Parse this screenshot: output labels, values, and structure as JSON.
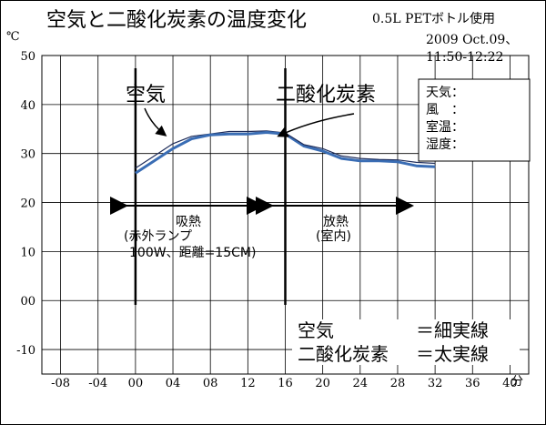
{
  "chart_data": {
    "type": "line",
    "title": "空気と二酸化炭素の温度変化",
    "note_container": "0.5L PETボトル使用",
    "note_date": "2009 Oct.09、",
    "note_time": "11:50-12:22",
    "y_unit_label": "℃",
    "x_unit_label": "分",
    "xlim": [
      -10,
      42
    ],
    "ylim": [
      -15,
      50
    ],
    "x_ticks": [
      -8,
      -4,
      0,
      4,
      8,
      12,
      16,
      20,
      24,
      28,
      32,
      36,
      40
    ],
    "x_tick_labels": [
      "-08",
      "-04",
      "00",
      "04",
      "08",
      "12",
      "16",
      "20",
      "24",
      "28",
      "32",
      "36",
      "40"
    ],
    "y_ticks": [
      -10,
      0,
      10,
      20,
      30,
      40,
      50
    ],
    "y_tick_labels": [
      "-10",
      "00",
      "10",
      "20",
      "30",
      "40",
      "50"
    ],
    "grid": true,
    "series": [
      {
        "name": "空気",
        "style": "細実線",
        "color": "#1f2d5a",
        "x": [
          0,
          2,
          4,
          6,
          8,
          10,
          12,
          14,
          16
        ],
        "values": [
          27,
          29.5,
          32,
          33.5,
          34,
          34.5,
          34.5,
          34.6,
          34.2
        ]
      },
      {
        "name": "二酸化炭素",
        "style": "太実線",
        "color": "#3a6db4",
        "x": [
          0,
          2,
          4,
          6,
          8,
          10,
          12,
          14,
          16,
          18,
          20,
          22,
          24,
          26,
          28,
          30,
          32
        ],
        "values": [
          26,
          28.5,
          31,
          33,
          33.8,
          34,
          34,
          34.3,
          34,
          31.5,
          30.5,
          29,
          28.5,
          28.5,
          28.3,
          27.5,
          27.3
        ]
      },
      {
        "name": "空気",
        "style": "細実線",
        "color": "#1f2d5a",
        "x": [
          16,
          18,
          20,
          22,
          24,
          26,
          28,
          30,
          32
        ],
        "values": [
          34.2,
          31.8,
          31,
          29.5,
          29,
          28.8,
          28.7,
          28.2,
          28
        ]
      }
    ],
    "annotations": {
      "air_label": "空気",
      "co2_label": "二酸化炭素",
      "absorb_label": "吸熱",
      "absorb_sub1": "(赤外ランプ",
      "absorb_sub2": "100W、距離=15CM)",
      "release_label": "放熱",
      "release_sub": "(室内)",
      "info_lines": [
        "天気：",
        "風　：",
        "室温：",
        "湿度："
      ],
      "legend_line1_name": "空気",
      "legend_line1_style": "＝細実線",
      "legend_line2_name": "二酸化炭素",
      "legend_line2_style": "＝太実線"
    },
    "phase_boundaries": [
      0,
      16
    ]
  }
}
